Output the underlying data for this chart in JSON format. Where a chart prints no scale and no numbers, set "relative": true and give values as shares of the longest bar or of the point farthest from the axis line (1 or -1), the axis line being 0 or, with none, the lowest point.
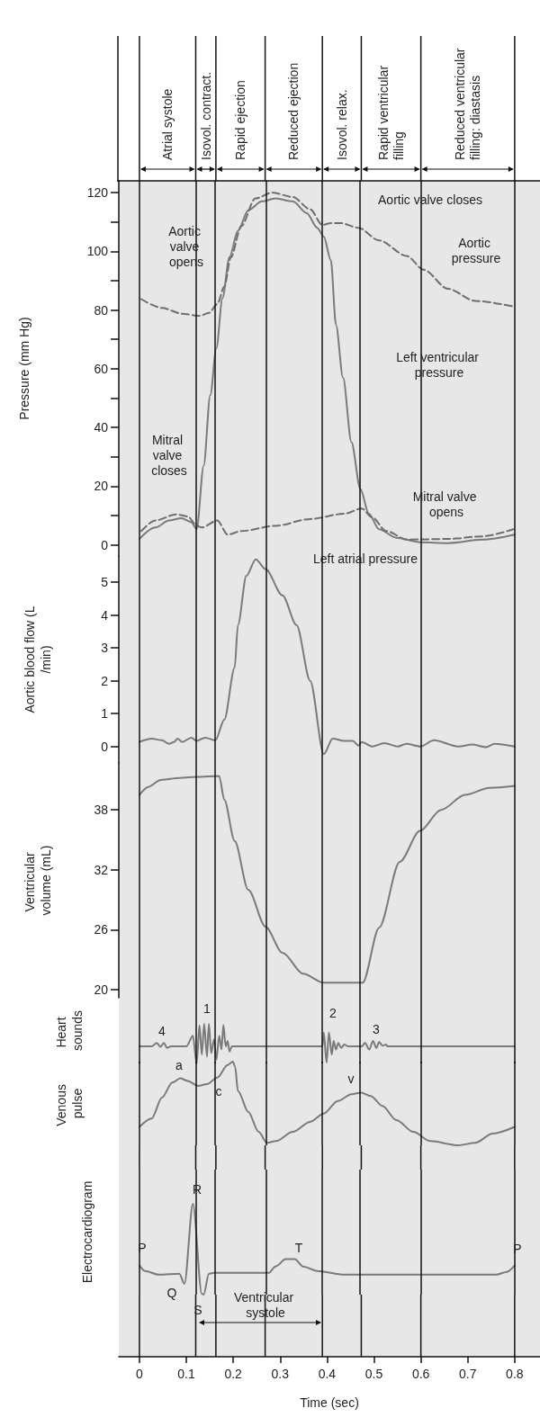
{
  "chart_data": [
    {
      "type": "line",
      "ylabel": "Pressure (mm Hg)",
      "xlim": [
        -0.044,
        0.854
      ],
      "ylim": [
        -3.8,
        124
      ],
      "tick_labels": "y",
      "marker": "none",
      "yticks": [
        0,
        {
          "value": 10,
          "label": null
        },
        20,
        {
          "value": 30,
          "label": null
        },
        40,
        {
          "value": 50,
          "label": null
        },
        60,
        {
          "value": 70,
          "label": null
        },
        80,
        {
          "value": 90,
          "label": null
        },
        100,
        {
          "value": 110,
          "label": null
        },
        120
      ],
      "series": [
        {
          "color": "#7a7a7a",
          "line_style": "solid",
          "x": [
            0,
            0.034,
            0.063,
            0.089,
            0.111,
            0.122,
            0.137,
            0.151,
            0.164,
            0.177,
            0.192,
            0.21,
            0.232,
            0.261,
            0.29,
            0.327,
            0.357,
            0.379,
            0.393,
            0.408,
            0.419,
            0.434,
            0.452,
            0.471,
            0.489,
            0.511,
            0.548,
            0.599,
            0.658,
            0.731,
            0.8
          ],
          "values": [
            2,
            5.9,
            8.3,
            9.1,
            7.7,
            5.3,
            27,
            51,
            67,
            84,
            98,
            107,
            114,
            117,
            118,
            117,
            113,
            108,
            105,
            97,
            75,
            57,
            35,
            19,
            10.6,
            5.3,
            2.4,
            0.9,
            0.6,
            1.8,
            3.5
          ]
        },
        {
          "color": "#6e6e6e",
          "line_style": "dashed",
          "x": [
            0.004,
            0.048,
            0.092,
            0.129,
            0.148,
            0.166,
            0.181,
            0.195,
            0.217,
            0.247,
            0.283,
            0.327,
            0.364,
            0.39,
            0.408,
            0.43,
            0.467,
            0.511,
            0.57,
            0.606,
            0.658,
            0.716,
            0.8
          ],
          "values": [
            83.7,
            80.7,
            78.7,
            78,
            79,
            82,
            88,
            98,
            108.5,
            118,
            120,
            118.5,
            114.3,
            109,
            109.6,
            109.6,
            108,
            103.7,
            98.4,
            93.7,
            87.2,
            83.1,
            81.1
          ]
        },
        {
          "color": "#6e6e6e",
          "line_style": "dashed",
          "x": [
            0.004,
            0.034,
            0.078,
            0.103,
            0.122,
            0.133,
            0.166,
            0.188,
            0.217,
            0.291,
            0.364,
            0.437,
            0.474,
            0.496,
            0.526,
            0.57,
            0.658,
            0.731,
            0.797
          ],
          "values": [
            4.7,
            8.3,
            10.4,
            9.7,
            6.5,
            5.9,
            8.3,
            3.5,
            4.7,
            6.5,
            8.8,
            10.6,
            12.4,
            9.4,
            4.7,
            1.8,
            2,
            2.9,
            5.3
          ]
        }
      ],
      "ref_lines": [
        {
          "axis": "x",
          "value": 0
        },
        {
          "axis": "x",
          "value": 0.12
        },
        {
          "axis": "x",
          "value": 0.163
        },
        {
          "axis": "x",
          "value": 0.268
        },
        {
          "axis": "x",
          "value": 0.39
        },
        {
          "axis": "x",
          "value": 0.473
        },
        {
          "axis": "x",
          "value": 0.6
        },
        {
          "axis": "x",
          "value": 0.8
        }
      ],
      "annotations": [
        "Aortic valve opens",
        "Aortic valve closes",
        "Aortic pressure",
        "Left ventricular pressure",
        "Mitral valve closes",
        "Mitral valve opens",
        "Left atrial pressure",
        "Atrial systole",
        "Isovol. contract.",
        "Rapid ejection",
        "Reduced ejection",
        "Isovol. relax.",
        "Rapid ventricular filling",
        "Reduced ventricular filling: diastasis"
      ]
    },
    {
      "type": "line",
      "ylabel": "Aortic blood flow (L/min)",
      "xlim": [
        -0.044,
        0.854
      ],
      "ylim": [
        -0.5,
        5.8
      ],
      "yticks": [
        0,
        1,
        2,
        3,
        4,
        5
      ],
      "tick_labels": "y",
      "marker": "none",
      "series": [
        {
          "color": "#7a7a7a",
          "x": [
            0,
            0.026,
            0.048,
            0.063,
            0.074,
            0.081,
            0.091,
            0.111,
            0.122,
            0.14,
            0.162,
            0.181,
            0.203,
            0.21,
            0.228,
            0.248,
            0.269,
            0.305,
            0.335,
            0.364,
            0.393,
            0.412,
            0.437,
            0.455,
            0.467,
            0.474,
            0.496,
            0.522,
            0.551,
            0.569,
            0.599,
            0.628,
            0.68,
            0.709,
            0.739,
            0.757,
            0.8
          ],
          "values": [
            0.14,
            0.24,
            0.19,
            0.08,
            0.14,
            0.24,
            0.14,
            0.27,
            0.17,
            0.27,
            0.19,
            0.82,
            2.4,
            3.7,
            5.2,
            5.7,
            5.4,
            4.6,
            3.7,
            2,
            -0.23,
            0.24,
            0.17,
            0.17,
            0.03,
            0.14,
            0,
            0.1,
            0,
            0.08,
            0,
            0.19,
            0,
            0.06,
            -0.02,
            0.08,
            0
          ]
        }
      ],
      "ref_lines": [
        {
          "axis": "x",
          "value": 0
        },
        {
          "axis": "x",
          "value": 0.12
        },
        {
          "axis": "x",
          "value": 0.163
        },
        {
          "axis": "x",
          "value": 0.268
        },
        {
          "axis": "x",
          "value": 0.39
        },
        {
          "axis": "x",
          "value": 0.473
        },
        {
          "axis": "x",
          "value": 0.6
        },
        {
          "axis": "x",
          "value": 0.8
        }
      ]
    },
    {
      "type": "line",
      "ylabel": "Ventricular volume (mL)",
      "xlim": [
        -0.044,
        0.854
      ],
      "ylim": [
        19.2,
        42.7
      ],
      "yticks": [
        20,
        26,
        32,
        38
      ],
      "tick_labels": "y",
      "marker": "none",
      "series": [
        {
          "color": "#7a7a7a",
          "x": [
            0,
            0.019,
            0.045,
            0.085,
            0.122,
            0.17,
            0.181,
            0.203,
            0.232,
            0.269,
            0.305,
            0.349,
            0.393,
            0.476,
            0.511,
            0.555,
            0.598,
            0.643,
            0.694,
            0.746,
            0.8
          ],
          "values": [
            39.5,
            40.3,
            41,
            41.2,
            41.3,
            41.4,
            39,
            34.9,
            30,
            26.3,
            23.7,
            21.6,
            20.7,
            20.7,
            26.2,
            32.8,
            35.9,
            38,
            39.5,
            40.2,
            40.4
          ]
        }
      ],
      "ref_lines": [
        {
          "axis": "x",
          "value": 0
        },
        {
          "axis": "x",
          "value": 0.12
        },
        {
          "axis": "x",
          "value": 0.163
        },
        {
          "axis": "x",
          "value": 0.268
        },
        {
          "axis": "x",
          "value": 0.39
        },
        {
          "axis": "x",
          "value": 0.473
        },
        {
          "axis": "x",
          "value": 0.6
        },
        {
          "axis": "x",
          "value": 0.8
        }
      ]
    },
    {
      "type": "line",
      "ylabel": "Heart sounds",
      "relative": true,
      "xlim": [
        -0.044,
        0.854
      ],
      "tick_labels": false,
      "marker": "none",
      "series": [
        {
          "color": "#7a7a7a",
          "x": [
            0,
            0.026,
            0.037,
            0.045,
            0.052,
            0.059,
            0.067,
            0.1,
            0.114,
            0.122,
            0.128,
            0.133,
            0.138,
            0.144,
            0.148,
            0.153,
            0.159,
            0.164,
            0.17,
            0.175,
            0.179,
            0.184,
            0.188,
            0.192,
            0.197,
            0.39,
            0.393,
            0.399,
            0.404,
            0.41,
            0.414,
            0.419,
            0.424,
            0.43,
            0.437,
            0.445,
            0.474,
            0.481,
            0.49,
            0.498,
            0.505,
            0.511,
            0.518,
            0.526,
            0.529,
            0.8
          ],
          "values": [
            0.43,
            0.43,
            0.52,
            0.42,
            0.52,
            0.39,
            0.43,
            0.43,
            0.7,
            0,
            0.96,
            0.22,
            1,
            0.17,
            1,
            0.26,
            0.61,
            0.09,
            0.7,
            0.35,
            0.97,
            0.43,
            0.57,
            0.3,
            0.43,
            0.43,
            0.78,
            0.02,
            0.78,
            0.22,
            0.57,
            0.35,
            0.52,
            0.39,
            0.48,
            0.43,
            0.43,
            0.52,
            0.35,
            0.57,
            0.39,
            0.54,
            0.45,
            0.48,
            0.43,
            0.43
          ]
        }
      ],
      "ref_lines": [
        {
          "axis": "x",
          "value": 0
        },
        {
          "axis": "x",
          "value": 0.12
        },
        {
          "axis": "x",
          "value": 0.163
        },
        {
          "axis": "x",
          "value": 0.268
        },
        {
          "axis": "x",
          "value": 0.39
        },
        {
          "axis": "x",
          "value": 0.473
        },
        {
          "axis": "x",
          "value": 0.6
        },
        {
          "axis": "x",
          "value": 0.8
        }
      ],
      "annotations": [
        "4",
        "1",
        "2",
        "3"
      ]
    },
    {
      "type": "line",
      "ylabel": "Venous pulse",
      "relative": true,
      "xlim": [
        -0.044,
        0.854
      ],
      "tick_labels": false,
      "marker": "none",
      "series": [
        {
          "color": "#7a7a7a",
          "x": [
            0,
            0.026,
            0.048,
            0.07,
            0.087,
            0.103,
            0.125,
            0.144,
            0.166,
            0.188,
            0.199,
            0.204,
            0.21,
            0.232,
            0.254,
            0.272,
            0.291,
            0.327,
            0.364,
            0.393,
            0.423,
            0.452,
            0.473,
            0.493,
            0.518,
            0.548,
            0.584,
            0.62,
            0.68,
            0.716,
            0.753,
            0.8
          ],
          "values": [
            0.22,
            0.32,
            0.57,
            0.75,
            0.8,
            0.77,
            0.71,
            0.73,
            0.81,
            0.96,
            1,
            0.94,
            0.65,
            0.4,
            0.16,
            0.03,
            0.05,
            0.16,
            0.28,
            0.38,
            0.53,
            0.61,
            0.63,
            0.59,
            0.47,
            0.3,
            0.16,
            0.05,
            0,
            0.03,
            0.14,
            0.22
          ]
        }
      ],
      "ref_lines": [
        {
          "axis": "x",
          "value": 0
        },
        {
          "axis": "x",
          "value": 0.12
        },
        {
          "axis": "x",
          "value": 0.163
        },
        {
          "axis": "x",
          "value": 0.268
        },
        {
          "axis": "x",
          "value": 0.39
        },
        {
          "axis": "x",
          "value": 0.473
        },
        {
          "axis": "x",
          "value": 0.6
        },
        {
          "axis": "x",
          "value": 0.8
        }
      ],
      "annotations": [
        "a",
        "c",
        "v"
      ]
    },
    {
      "type": "line",
      "ylabel": "Electrocardiogram",
      "xlabel": "Time (sec)",
      "relative": true,
      "xlim": [
        -0.044,
        0.854
      ],
      "xticks": [
        0,
        0.1,
        0.2,
        0.3,
        0.4,
        0.5,
        0.6,
        0.7,
        0.8
      ],
      "tick_labels": "x",
      "marker": "none",
      "series": [
        {
          "color": "#7a7a7a",
          "x": [
            0,
            0.012,
            0.041,
            0.085,
            0.096,
            0.114,
            0.133,
            0.137,
            0.148,
            0.159,
            0.276,
            0.29,
            0.312,
            0.331,
            0.349,
            0.379,
            0.437,
            0.658,
            0.761,
            0.783,
            0.8
          ],
          "values": [
            0.32,
            0.26,
            0.22,
            0.23,
            0.12,
            1,
            0.01,
            0,
            0.23,
            0.24,
            0.24,
            0.31,
            0.39,
            0.39,
            0.31,
            0.26,
            0.22,
            0.22,
            0.22,
            0.25,
            0.32
          ]
        }
      ],
      "ref_lines": [
        {
          "axis": "x",
          "value": 0
        },
        {
          "axis": "x",
          "value": 0.12
        },
        {
          "axis": "x",
          "value": 0.163
        },
        {
          "axis": "x",
          "value": 0.268
        },
        {
          "axis": "x",
          "value": 0.39
        },
        {
          "axis": "x",
          "value": 0.473
        },
        {
          "axis": "x",
          "value": 0.6
        },
        {
          "axis": "x",
          "value": 0.8
        }
      ],
      "annotations": [
        "P",
        "R",
        "Q",
        "S",
        "T",
        "P",
        "Ventricular systole"
      ]
    }
  ]
}
